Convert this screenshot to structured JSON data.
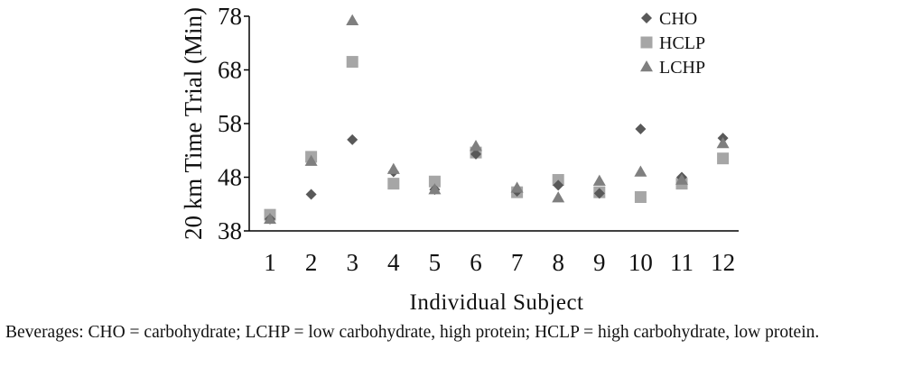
{
  "chart_data": {
    "type": "scatter",
    "xlabel": "Individual Subject",
    "ylabel": "20 km Time Trial (Min)",
    "categories": [
      "1",
      "2",
      "3",
      "4",
      "5",
      "6",
      "7",
      "8",
      "9",
      "10",
      "11",
      "12"
    ],
    "yticks": [
      "38",
      "48",
      "58",
      "68",
      "78"
    ],
    "ylim": [
      38,
      78
    ],
    "grid": false,
    "legend_position": "top-right",
    "series": [
      {
        "name": "CHO",
        "marker": "diamond",
        "color": "#595959",
        "values": [
          40.2,
          44.8,
          55.0,
          49.0,
          45.7,
          52.3,
          45.4,
          46.5,
          45.0,
          57.0,
          48.0,
          55.3
        ]
      },
      {
        "name": "HCLP",
        "marker": "square",
        "color": "#a6a6a6",
        "values": [
          41.0,
          51.8,
          69.5,
          46.8,
          47.2,
          52.6,
          45.2,
          47.5,
          45.2,
          44.3,
          46.8,
          51.5
        ]
      },
      {
        "name": "LCHP",
        "marker": "triangle",
        "color": "#7f7f7f",
        "values": [
          40.2,
          51.0,
          77.2,
          49.5,
          45.7,
          53.8,
          46.0,
          44.2,
          47.3,
          49.0,
          47.5,
          54.3
        ]
      }
    ]
  },
  "caption": "Beverages: CHO = carbohydrate; LCHP = low carbohydrate, high protein; HCLP = high carbohydrate, low protein."
}
